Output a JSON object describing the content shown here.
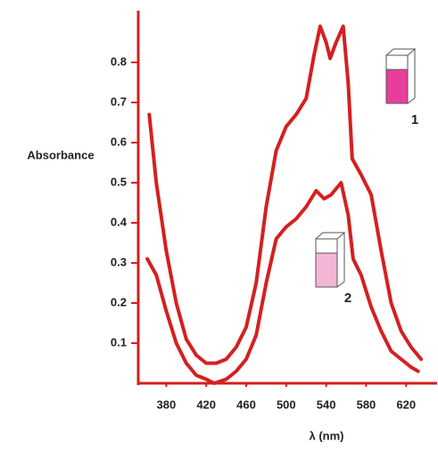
{
  "chart_data": {
    "type": "line",
    "y_label": "Absorbance",
    "x_label": "λ (nm)",
    "xlim": [
      352,
      651
    ],
    "ylim": [
      0,
      0.92
    ],
    "xticks": [
      380,
      420,
      460,
      500,
      540,
      580,
      620
    ],
    "yticks": [
      0.1,
      0.2,
      0.3,
      0.4,
      0.5,
      0.6,
      0.7,
      0.8
    ],
    "series": [
      {
        "name": "1",
        "color": "#d42020",
        "x": [
          363,
          370,
          380,
          390,
          400,
          410,
          420,
          430,
          440,
          450,
          460,
          470,
          480,
          490,
          500,
          510,
          520,
          528,
          534,
          540,
          544,
          550,
          557,
          562,
          566,
          575,
          585,
          595,
          605,
          615,
          625,
          635
        ],
        "values": [
          0.67,
          0.5,
          0.33,
          0.2,
          0.11,
          0.07,
          0.05,
          0.05,
          0.06,
          0.09,
          0.14,
          0.25,
          0.44,
          0.58,
          0.64,
          0.67,
          0.71,
          0.82,
          0.89,
          0.85,
          0.81,
          0.85,
          0.89,
          0.75,
          0.56,
          0.52,
          0.47,
          0.33,
          0.2,
          0.13,
          0.09,
          0.06
        ]
      },
      {
        "name": "2",
        "color": "#d42020",
        "x": [
          361,
          370,
          380,
          390,
          400,
          410,
          420,
          428,
          440,
          450,
          460,
          470,
          480,
          490,
          500,
          510,
          520,
          530,
          538,
          545,
          555,
          562,
          567,
          575,
          585,
          595,
          605,
          615,
          625,
          632
        ],
        "values": [
          0.31,
          0.27,
          0.18,
          0.1,
          0.05,
          0.02,
          0.01,
          0.0,
          0.01,
          0.03,
          0.06,
          0.12,
          0.25,
          0.36,
          0.39,
          0.41,
          0.44,
          0.48,
          0.46,
          0.47,
          0.5,
          0.42,
          0.31,
          0.27,
          0.19,
          0.13,
          0.08,
          0.06,
          0.04,
          0.03
        ]
      }
    ]
  }
}
